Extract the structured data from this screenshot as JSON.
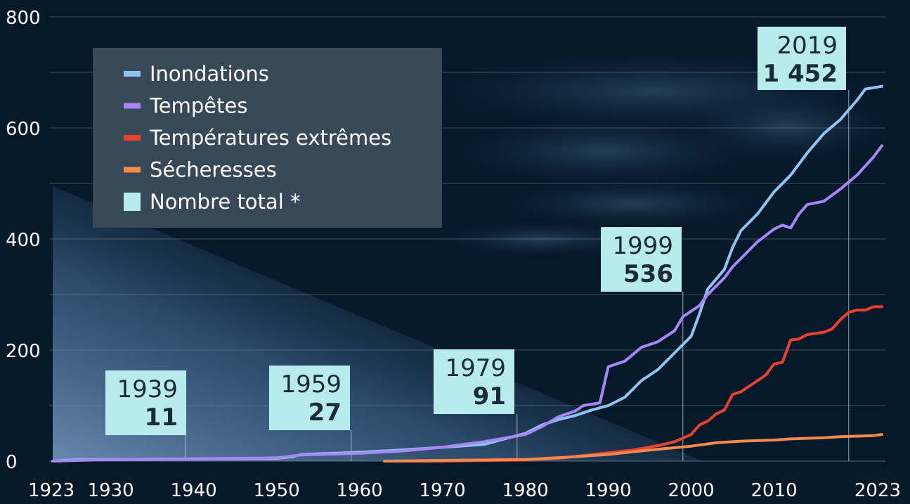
{
  "chart_data": {
    "type": "line",
    "x_ticks": [
      1923,
      1930,
      1940,
      1950,
      1960,
      1970,
      1980,
      1990,
      2000,
      2010,
      2023
    ],
    "y_ticks": [
      0,
      200,
      400,
      600,
      800
    ],
    "xlim": [
      1923,
      2023
    ],
    "ylim": [
      0,
      800
    ],
    "grid": true,
    "legend_position": "top-left",
    "legend_total_label": "Nombre total *",
    "legend_total_color": "#b8ecec",
    "series": [
      {
        "name": "Inondations",
        "color": "#8ec4f4",
        "points": [
          [
            1923,
            0
          ],
          [
            1925,
            2
          ],
          [
            1930,
            3
          ],
          [
            1940,
            4
          ],
          [
            1950,
            5
          ],
          [
            1952,
            8
          ],
          [
            1953,
            12
          ],
          [
            1960,
            16
          ],
          [
            1965,
            20
          ],
          [
            1970,
            25
          ],
          [
            1975,
            30
          ],
          [
            1977,
            38
          ],
          [
            1980,
            50
          ],
          [
            1982,
            65
          ],
          [
            1984,
            75
          ],
          [
            1986,
            82
          ],
          [
            1988,
            92
          ],
          [
            1990,
            100
          ],
          [
            1992,
            115
          ],
          [
            1994,
            145
          ],
          [
            1996,
            165
          ],
          [
            1998,
            195
          ],
          [
            2000,
            225
          ],
          [
            2001,
            265
          ],
          [
            2002,
            310
          ],
          [
            2004,
            345
          ],
          [
            2005,
            385
          ],
          [
            2006,
            415
          ],
          [
            2008,
            445
          ],
          [
            2010,
            485
          ],
          [
            2012,
            515
          ],
          [
            2014,
            555
          ],
          [
            2016,
            590
          ],
          [
            2018,
            615
          ],
          [
            2020,
            650
          ],
          [
            2021,
            670
          ],
          [
            2023,
            675
          ]
        ]
      },
      {
        "name": "Tempêtes",
        "color": "#a887f4",
        "points": [
          [
            1923,
            0
          ],
          [
            1930,
            3
          ],
          [
            1940,
            4
          ],
          [
            1950,
            6
          ],
          [
            1953,
            11
          ],
          [
            1960,
            14
          ],
          [
            1965,
            18
          ],
          [
            1970,
            25
          ],
          [
            1975,
            35
          ],
          [
            1977,
            40
          ],
          [
            1980,
            48
          ],
          [
            1982,
            62
          ],
          [
            1984,
            80
          ],
          [
            1986,
            90
          ],
          [
            1987,
            100
          ],
          [
            1989,
            105
          ],
          [
            1990,
            170
          ],
          [
            1992,
            180
          ],
          [
            1994,
            205
          ],
          [
            1996,
            215
          ],
          [
            1998,
            235
          ],
          [
            1999,
            260
          ],
          [
            2001,
            280
          ],
          [
            2002,
            300
          ],
          [
            2003,
            315
          ],
          [
            2004,
            330
          ],
          [
            2005,
            350
          ],
          [
            2006,
            365
          ],
          [
            2008,
            395
          ],
          [
            2010,
            418
          ],
          [
            2011,
            425
          ],
          [
            2012,
            420
          ],
          [
            2013,
            445
          ],
          [
            2014,
            462
          ],
          [
            2016,
            468
          ],
          [
            2018,
            490
          ],
          [
            2020,
            515
          ],
          [
            2022,
            548
          ],
          [
            2023,
            568
          ]
        ]
      },
      {
        "name": "Températures extrêmes",
        "color": "#e8412e",
        "points": [
          [
            1963,
            0
          ],
          [
            1970,
            0
          ],
          [
            1975,
            1
          ],
          [
            1980,
            2
          ],
          [
            1984,
            5
          ],
          [
            1987,
            10
          ],
          [
            1990,
            15
          ],
          [
            1993,
            20
          ],
          [
            1996,
            28
          ],
          [
            1998,
            35
          ],
          [
            2000,
            48
          ],
          [
            2001,
            65
          ],
          [
            2002,
            72
          ],
          [
            2003,
            85
          ],
          [
            2004,
            92
          ],
          [
            2005,
            120
          ],
          [
            2006,
            125
          ],
          [
            2008,
            145
          ],
          [
            2009,
            155
          ],
          [
            2010,
            175
          ],
          [
            2011,
            178
          ],
          [
            2012,
            218
          ],
          [
            2013,
            220
          ],
          [
            2014,
            228
          ],
          [
            2016,
            232
          ],
          [
            2017,
            238
          ],
          [
            2018,
            255
          ],
          [
            2019,
            268
          ],
          [
            2020,
            272
          ],
          [
            2021,
            272
          ],
          [
            2022,
            278
          ],
          [
            2023,
            278
          ]
        ]
      },
      {
        "name": "Sécheresses",
        "color": "#f08a4f",
        "points": [
          [
            1963,
            0
          ],
          [
            1980,
            3
          ],
          [
            1985,
            7
          ],
          [
            1990,
            12
          ],
          [
            1995,
            20
          ],
          [
            2000,
            27
          ],
          [
            2003,
            33
          ],
          [
            2006,
            36
          ],
          [
            2010,
            38
          ],
          [
            2012,
            40
          ],
          [
            2016,
            42
          ],
          [
            2018,
            44
          ],
          [
            2022,
            46
          ],
          [
            2023,
            48
          ]
        ]
      }
    ],
    "annotations": [
      {
        "year": 1939,
        "label_year": "1939",
        "total": "11"
      },
      {
        "year": 1959,
        "label_year": "1959",
        "total": "27"
      },
      {
        "year": 1979,
        "label_year": "1979",
        "total": "91"
      },
      {
        "year": 1999,
        "label_year": "1999",
        "total": "536"
      },
      {
        "year": 2019,
        "label_year": "2019",
        "total": "1 452"
      }
    ]
  }
}
